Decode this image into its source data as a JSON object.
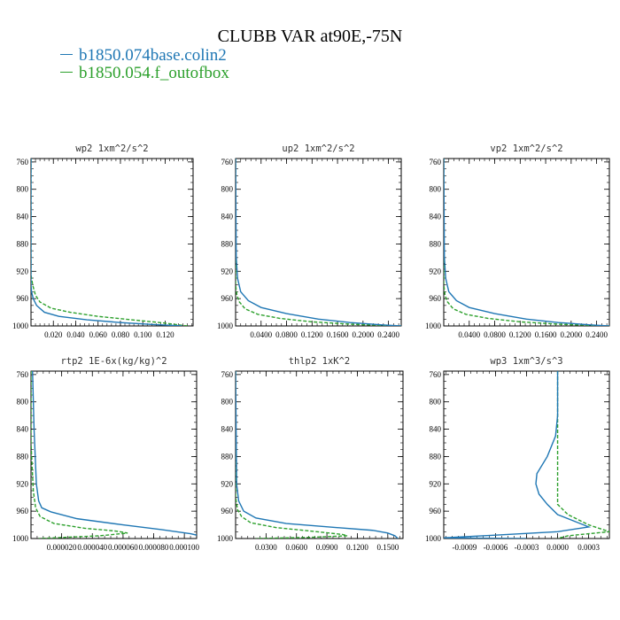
{
  "title": "CLUBB VAR at90E,-75N",
  "legend": [
    {
      "name": "b1850.074base.colin2",
      "color": "#1f77b4"
    },
    {
      "name": "b1850.054.f_outofbox",
      "color": "#2ca02c"
    }
  ],
  "chart_data": [
    {
      "type": "line",
      "title": "wp2  1xm^2/s^2",
      "ylim": [
        1000,
        755
      ],
      "yticks": [
        760,
        800,
        840,
        880,
        920,
        960,
        1000
      ],
      "xlim": [
        0,
        0.145
      ],
      "xticks": [
        0.02,
        0.04,
        0.06,
        0.08,
        0.1,
        0.12
      ],
      "xtick_labels": [
        "0.020",
        "0.040",
        "0.060",
        "0.080",
        "0.100",
        "0.120"
      ],
      "series": [
        {
          "name": "b1850.074base.colin2",
          "points": [
            [
              0.0,
              755
            ],
            [
              0.0,
              940
            ],
            [
              0.0005,
              950
            ],
            [
              0.002,
              960
            ],
            [
              0.005,
              970
            ],
            [
              0.012,
              980
            ],
            [
              0.025,
              986
            ],
            [
              0.05,
              991
            ],
            [
              0.08,
              995
            ],
            [
              0.11,
              998
            ],
            [
              0.13,
              999.5
            ],
            [
              0.135,
              1000
            ]
          ]
        },
        {
          "name": "b1850.054.f_outofbox",
          "points": [
            [
              0.0,
              755
            ],
            [
              0.0,
              925
            ],
            [
              0.0015,
              940
            ],
            [
              0.004,
              955
            ],
            [
              0.008,
              965
            ],
            [
              0.018,
              974
            ],
            [
              0.035,
              980
            ],
            [
              0.06,
              986
            ],
            [
              0.09,
              991
            ],
            [
              0.115,
              995
            ],
            [
              0.13,
              998
            ],
            [
              0.14,
              1000
            ]
          ]
        }
      ]
    },
    {
      "type": "line",
      "title": "up2  1xm^2/s^2",
      "ylim": [
        1000,
        755
      ],
      "yticks": [
        760,
        800,
        840,
        880,
        920,
        960,
        1000
      ],
      "xlim": [
        0,
        0.26
      ],
      "xticks": [
        0.04,
        0.08,
        0.12,
        0.16,
        0.2,
        0.24
      ],
      "xtick_labels": [
        "0.0400",
        "0.0800",
        "0.1200",
        "0.1600",
        "0.2000",
        "0.2400"
      ],
      "series": [
        {
          "name": "b1850.074base.colin2",
          "points": [
            [
              0.0,
              755
            ],
            [
              0.001,
              900
            ],
            [
              0.003,
              930
            ],
            [
              0.008,
              950
            ],
            [
              0.02,
              963
            ],
            [
              0.04,
              973
            ],
            [
              0.08,
              982
            ],
            [
              0.13,
              990
            ],
            [
              0.18,
              995
            ],
            [
              0.23,
              998.5
            ],
            [
              0.26,
              1000
            ]
          ]
        },
        {
          "name": "b1850.054.f_outofbox",
          "points": [
            [
              0.0,
              755
            ],
            [
              0.0,
              940
            ],
            [
              0.002,
              955
            ],
            [
              0.006,
              965
            ],
            [
              0.015,
              975
            ],
            [
              0.035,
              983
            ],
            [
              0.07,
              989
            ],
            [
              0.12,
              994
            ],
            [
              0.18,
              997.5
            ],
            [
              0.24,
              999.5
            ],
            [
              0.26,
              1000
            ]
          ]
        }
      ]
    },
    {
      "type": "line",
      "title": "vp2  1xm^2/s^2",
      "ylim": [
        1000,
        755
      ],
      "yticks": [
        760,
        800,
        840,
        880,
        920,
        960,
        1000
      ],
      "xlim": [
        0,
        0.26
      ],
      "xticks": [
        0.04,
        0.08,
        0.12,
        0.16,
        0.2,
        0.24
      ],
      "xtick_labels": [
        "0.0400",
        "0.0800",
        "0.1200",
        "0.1600",
        "0.2000",
        "0.2400"
      ],
      "series": [
        {
          "name": "b1850.074base.colin2",
          "points": [
            [
              0.0,
              755
            ],
            [
              0.001,
              900
            ],
            [
              0.003,
              930
            ],
            [
              0.008,
              950
            ],
            [
              0.02,
              963
            ],
            [
              0.04,
              973
            ],
            [
              0.08,
              982
            ],
            [
              0.13,
              990
            ],
            [
              0.18,
              995
            ],
            [
              0.23,
              998.5
            ],
            [
              0.26,
              1000
            ]
          ]
        },
        {
          "name": "b1850.054.f_outofbox",
          "points": [
            [
              0.0,
              755
            ],
            [
              0.0,
              940
            ],
            [
              0.002,
              955
            ],
            [
              0.006,
              965
            ],
            [
              0.015,
              975
            ],
            [
              0.035,
              983
            ],
            [
              0.07,
              989
            ],
            [
              0.12,
              994
            ],
            [
              0.18,
              997.5
            ],
            [
              0.24,
              999.5
            ],
            [
              0.26,
              1000
            ]
          ]
        }
      ]
    },
    {
      "type": "line",
      "title": "rtp2  1E-6x(kg/kg)^2",
      "ylim": [
        1000,
        755
      ],
      "yticks": [
        760,
        800,
        840,
        880,
        920,
        960,
        1000
      ],
      "xlim": [
        0,
        0.000108
      ],
      "xticks": [
        2e-05,
        4e-05,
        6e-05,
        8e-05,
        0.0001
      ],
      "xtick_labels": [
        "0.000020",
        "0.000040",
        "0.000060",
        "0.000080",
        "0.000100"
      ],
      "series": [
        {
          "name": "b1850.074base.colin2",
          "points": [
            [
              1e-06,
              755
            ],
            [
              2e-06,
              840
            ],
            [
              3.5e-06,
              920
            ],
            [
              5e-06,
              945
            ],
            [
              7e-06,
              955
            ],
            [
              1.3e-05,
              961
            ],
            [
              3e-05,
              971
            ],
            [
              6e-05,
              980
            ],
            [
              8.5e-05,
              987
            ],
            [
              0.000104,
              993
            ],
            [
              0.000108,
              995
            ]
          ]
        },
        {
          "name": "b1850.054.f_outofbox",
          "points": [
            [
              0.0,
              755
            ],
            [
              0.0,
              860
            ],
            [
              1.5e-06,
              930
            ],
            [
              3e-06,
              955
            ],
            [
              6e-06,
              968
            ],
            [
              1.5e-05,
              978
            ],
            [
              3.5e-05,
              985
            ],
            [
              5.5e-05,
              989
            ],
            [
              6.3e-05,
              992
            ],
            [
              4.5e-05,
              996
            ],
            [
              1.5e-05,
              999
            ],
            [
              5e-06,
              1000
            ]
          ]
        }
      ]
    },
    {
      "type": "line",
      "title": "thlp2  1xK^2",
      "ylim": [
        1000,
        755
      ],
      "yticks": [
        760,
        800,
        840,
        880,
        920,
        960,
        1000
      ],
      "xlim": [
        0,
        0.165
      ],
      "xticks": [
        0.03,
        0.06,
        0.09,
        0.12,
        0.15
      ],
      "xtick_labels": [
        "0.0300",
        "0.0600",
        "0.0900",
        "0.1200",
        "0.1500"
      ],
      "series": [
        {
          "name": "b1850.074base.colin2",
          "points": [
            [
              0.0,
              755
            ],
            [
              0.001,
              920
            ],
            [
              0.003,
              945
            ],
            [
              0.008,
              960
            ],
            [
              0.02,
              970
            ],
            [
              0.05,
              978
            ],
            [
              0.1,
              984
            ],
            [
              0.135,
              988
            ],
            [
              0.15,
              992
            ],
            [
              0.157,
              996
            ],
            [
              0.16,
              1000
            ]
          ]
        },
        {
          "name": "b1850.054.f_outofbox",
          "points": [
            [
              0.0,
              755
            ],
            [
              0.0,
              940
            ],
            [
              0.002,
              958
            ],
            [
              0.006,
              968
            ],
            [
              0.015,
              977
            ],
            [
              0.04,
              984
            ],
            [
              0.08,
              990
            ],
            [
              0.105,
              994
            ],
            [
              0.11,
              996
            ],
            [
              0.07,
              998.5
            ],
            [
              0.02,
              1000
            ]
          ]
        }
      ]
    },
    {
      "type": "line",
      "title": "wp3  1xm^3/s^3",
      "ylim": [
        1000,
        755
      ],
      "yticks": [
        760,
        800,
        840,
        880,
        920,
        960,
        1000
      ],
      "xlim": [
        -0.0011,
        0.0005
      ],
      "xticks": [
        -0.0009,
        -0.0006,
        -0.0003,
        0.0,
        0.0003
      ],
      "xtick_labels": [
        "-0.0009",
        "-0.0006",
        "-0.0003",
        "0.0000",
        "0.0003"
      ],
      "series": [
        {
          "name": "b1850.074base.colin2",
          "points": [
            [
              0.0,
              755
            ],
            [
              0.0,
              820
            ],
            [
              -2e-05,
              850
            ],
            [
              -0.0001,
              880
            ],
            [
              -0.0002,
              905
            ],
            [
              -0.00021,
              920
            ],
            [
              -0.00018,
              935
            ],
            [
              -0.0001,
              950
            ],
            [
              0.0,
              965
            ],
            [
              0.0003,
              983
            ],
            [
              0.0,
              990
            ],
            [
              -0.0006,
              995
            ],
            [
              -0.0011,
              999
            ],
            [
              -0.0003,
              1000
            ]
          ]
        },
        {
          "name": "b1850.054.f_outofbox",
          "points": [
            [
              0.0,
              755
            ],
            [
              0.0,
              950
            ],
            [
              0.0001,
              965
            ],
            [
              0.0003,
              980
            ],
            [
              0.0005,
              990
            ],
            [
              0.0001,
              996
            ],
            [
              0.0,
              1000
            ]
          ]
        }
      ]
    }
  ]
}
